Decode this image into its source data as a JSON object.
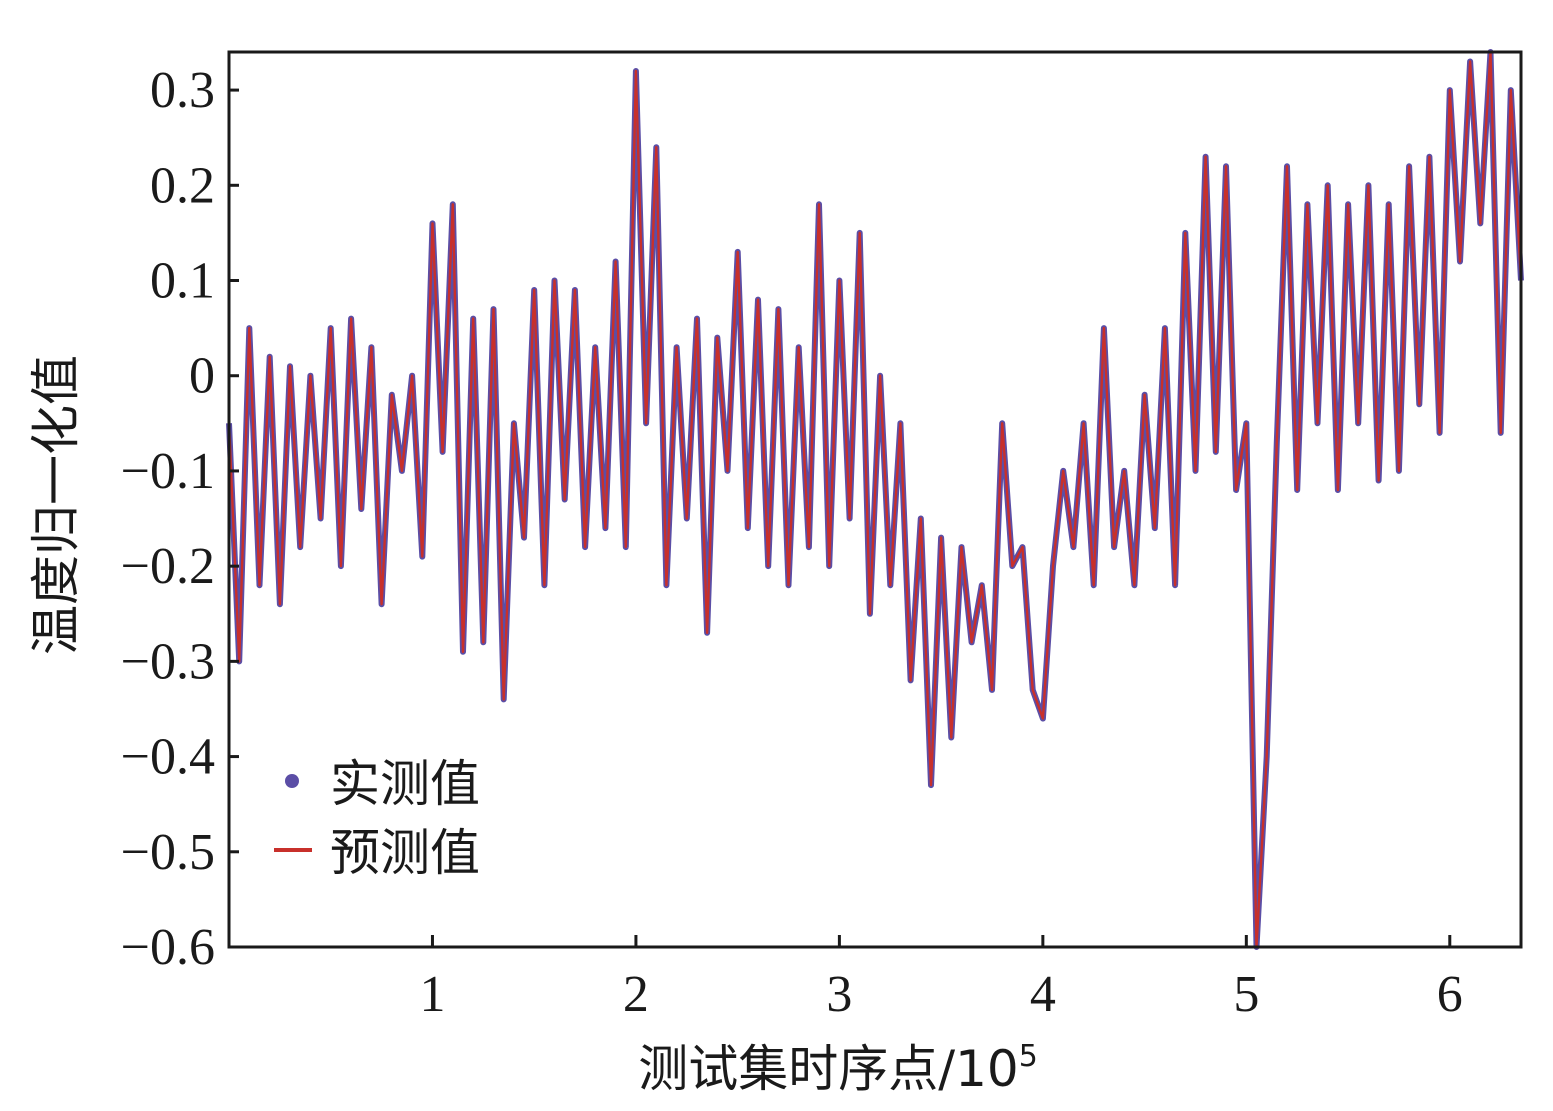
{
  "chart_data": {
    "type": "line",
    "xlabel": "测试集时序点/10",
    "xlabel_exponent": "5",
    "ylabel": "温度归一化值",
    "xlim": [
      0,
      6.35
    ],
    "ylim": [
      -0.6,
      0.34
    ],
    "x_ticks": [
      1,
      2,
      3,
      4,
      5,
      6
    ],
    "x_tick_labels": [
      "1",
      "2",
      "3",
      "4",
      "5",
      "6"
    ],
    "y_ticks": [
      0.3,
      0.2,
      0.1,
      0,
      -0.1,
      -0.2,
      -0.3,
      -0.4,
      -0.5,
      -0.6
    ],
    "y_tick_labels": [
      "0.3",
      "0.2",
      "0.1",
      "0",
      "−0.1",
      "−0.2",
      "−0.3",
      "−0.4",
      "−0.5",
      "−0.6"
    ],
    "legend_position": "bottom-left",
    "grid": false,
    "series": [
      {
        "name": "实测值",
        "marker": "dot",
        "color": "#5b4ea6"
      },
      {
        "name": "预测值",
        "marker": "line",
        "color": "#c8302b"
      }
    ],
    "x": [
      0.0,
      0.05,
      0.1,
      0.15,
      0.2,
      0.25,
      0.3,
      0.35,
      0.4,
      0.45,
      0.5,
      0.55,
      0.6,
      0.65,
      0.7,
      0.75,
      0.8,
      0.85,
      0.9,
      0.95,
      1.0,
      1.05,
      1.1,
      1.15,
      1.2,
      1.25,
      1.3,
      1.35,
      1.4,
      1.45,
      1.5,
      1.55,
      1.6,
      1.65,
      1.7,
      1.75,
      1.8,
      1.85,
      1.9,
      1.95,
      2.0,
      2.05,
      2.1,
      2.15,
      2.2,
      2.25,
      2.3,
      2.35,
      2.4,
      2.45,
      2.5,
      2.55,
      2.6,
      2.65,
      2.7,
      2.75,
      2.8,
      2.85,
      2.9,
      2.95,
      3.0,
      3.05,
      3.1,
      3.15,
      3.2,
      3.25,
      3.3,
      3.35,
      3.4,
      3.45,
      3.5,
      3.55,
      3.6,
      3.65,
      3.7,
      3.75,
      3.8,
      3.85,
      3.9,
      3.95,
      4.0,
      4.05,
      4.1,
      4.15,
      4.2,
      4.25,
      4.3,
      4.35,
      4.4,
      4.45,
      4.5,
      4.55,
      4.6,
      4.65,
      4.7,
      4.75,
      4.8,
      4.85,
      4.9,
      4.95,
      5.0,
      5.05,
      5.1,
      5.15,
      5.2,
      5.25,
      5.3,
      5.35,
      5.4,
      5.45,
      5.5,
      5.55,
      5.6,
      5.65,
      5.7,
      5.75,
      5.8,
      5.85,
      5.9,
      5.95,
      6.0,
      6.05,
      6.1,
      6.15,
      6.2,
      6.25,
      6.3,
      6.35
    ],
    "y": [
      -0.05,
      -0.3,
      0.05,
      -0.22,
      0.02,
      -0.24,
      0.01,
      -0.18,
      0.0,
      -0.15,
      0.05,
      -0.2,
      0.06,
      -0.14,
      0.03,
      -0.24,
      -0.02,
      -0.1,
      0.0,
      -0.19,
      0.16,
      -0.08,
      0.18,
      -0.29,
      0.06,
      -0.28,
      0.07,
      -0.34,
      -0.05,
      -0.17,
      0.09,
      -0.22,
      0.1,
      -0.13,
      0.09,
      -0.18,
      0.03,
      -0.16,
      0.12,
      -0.18,
      0.32,
      -0.05,
      0.24,
      -0.22,
      0.03,
      -0.15,
      0.06,
      -0.27,
      0.04,
      -0.1,
      0.13,
      -0.16,
      0.08,
      -0.2,
      0.07,
      -0.22,
      0.03,
      -0.18,
      0.18,
      -0.2,
      0.1,
      -0.15,
      0.15,
      -0.25,
      0.0,
      -0.22,
      -0.05,
      -0.32,
      -0.15,
      -0.43,
      -0.17,
      -0.38,
      -0.18,
      -0.28,
      -0.22,
      -0.33,
      -0.05,
      -0.2,
      -0.18,
      -0.33,
      -0.36,
      -0.2,
      -0.1,
      -0.18,
      -0.05,
      -0.22,
      0.05,
      -0.18,
      -0.1,
      -0.22,
      -0.02,
      -0.16,
      0.05,
      -0.22,
      0.15,
      -0.1,
      0.23,
      -0.08,
      0.22,
      -0.12,
      -0.05,
      -0.6,
      -0.4,
      -0.07,
      0.22,
      -0.12,
      0.18,
      -0.05,
      0.2,
      -0.12,
      0.18,
      -0.05,
      0.2,
      -0.11,
      0.18,
      -0.1,
      0.22,
      -0.03,
      0.23,
      -0.06,
      0.3,
      0.12,
      0.33,
      0.16,
      0.34,
      -0.06,
      0.3,
      0.1
    ]
  }
}
